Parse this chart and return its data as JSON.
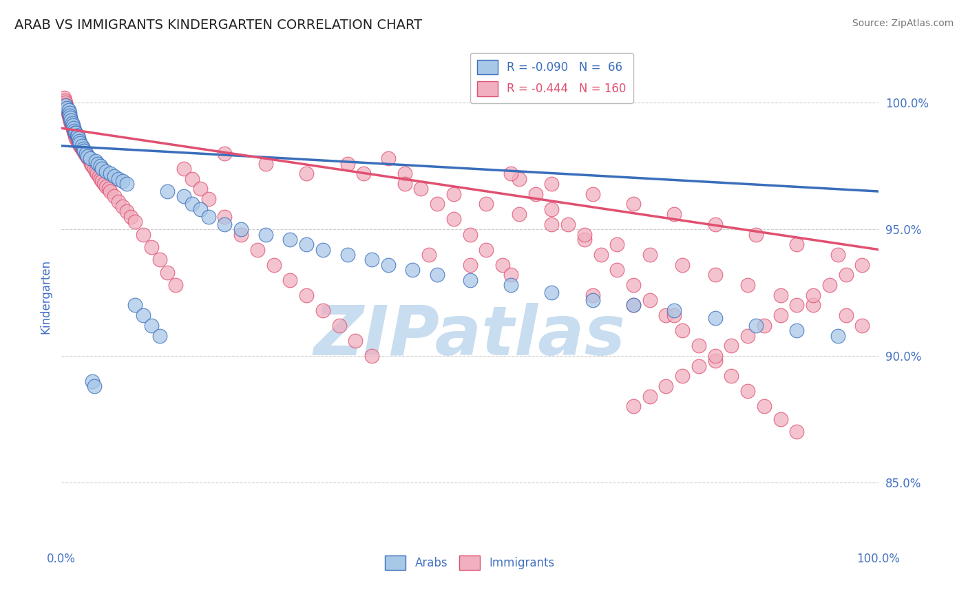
{
  "title": "ARAB VS IMMIGRANTS KINDERGARTEN CORRELATION CHART",
  "source": "Source: ZipAtlas.com",
  "ylabel": "Kindergarten",
  "xlim": [
    0.0,
    1.0
  ],
  "ylim": [
    0.825,
    1.022
  ],
  "yticks": [
    0.85,
    0.9,
    0.95,
    1.0
  ],
  "ytick_labels": [
    "85.0%",
    "90.0%",
    "95.0%",
    "100.0%"
  ],
  "xticks": [
    0.0,
    0.5,
    1.0
  ],
  "xtick_labels": [
    "0.0%",
    "",
    "100.0%"
  ],
  "blue_R": -0.09,
  "blue_N": 66,
  "pink_R": -0.444,
  "pink_N": 160,
  "blue_color": "#A8C8E8",
  "pink_color": "#F0B0C0",
  "blue_line_color": "#3A6EBB",
  "pink_line_color": "#E05070",
  "watermark_color": "#C8DDF0",
  "axis_label_color": "#4472C4",
  "grid_color": "#CCCCCC",
  "background_color": "#FFFFFF",
  "blue_line_intercept": 0.983,
  "blue_line_slope": -0.018,
  "pink_line_intercept": 0.99,
  "pink_line_slope": -0.048,
  "blue_x": [
    0.005,
    0.007,
    0.009,
    0.01,
    0.01,
    0.011,
    0.012,
    0.013,
    0.014,
    0.015,
    0.016,
    0.017,
    0.018,
    0.019,
    0.02,
    0.021,
    0.022,
    0.023,
    0.025,
    0.027,
    0.028,
    0.03,
    0.032,
    0.035,
    0.038,
    0.04,
    0.042,
    0.045,
    0.048,
    0.05,
    0.055,
    0.06,
    0.065,
    0.07,
    0.075,
    0.08,
    0.09,
    0.1,
    0.11,
    0.12,
    0.13,
    0.15,
    0.16,
    0.17,
    0.18,
    0.2,
    0.22,
    0.25,
    0.28,
    0.3,
    0.32,
    0.35,
    0.38,
    0.4,
    0.43,
    0.46,
    0.5,
    0.55,
    0.6,
    0.65,
    0.7,
    0.75,
    0.8,
    0.85,
    0.9,
    0.95
  ],
  "blue_y": [
    0.999,
    0.998,
    0.997,
    0.996,
    0.995,
    0.994,
    0.993,
    0.992,
    0.991,
    0.99,
    0.989,
    0.988,
    0.988,
    0.987,
    0.987,
    0.986,
    0.985,
    0.984,
    0.983,
    0.982,
    0.981,
    0.98,
    0.979,
    0.978,
    0.89,
    0.888,
    0.977,
    0.976,
    0.975,
    0.974,
    0.973,
    0.972,
    0.971,
    0.97,
    0.969,
    0.968,
    0.92,
    0.916,
    0.912,
    0.908,
    0.965,
    0.963,
    0.96,
    0.958,
    0.955,
    0.952,
    0.95,
    0.948,
    0.946,
    0.944,
    0.942,
    0.94,
    0.938,
    0.936,
    0.934,
    0.932,
    0.93,
    0.928,
    0.925,
    0.922,
    0.92,
    0.918,
    0.915,
    0.912,
    0.91,
    0.908
  ],
  "pink_x": [
    0.003,
    0.004,
    0.005,
    0.005,
    0.006,
    0.006,
    0.007,
    0.007,
    0.008,
    0.008,
    0.009,
    0.009,
    0.01,
    0.01,
    0.01,
    0.011,
    0.011,
    0.012,
    0.012,
    0.013,
    0.013,
    0.014,
    0.014,
    0.015,
    0.015,
    0.016,
    0.016,
    0.017,
    0.018,
    0.018,
    0.019,
    0.02,
    0.02,
    0.021,
    0.022,
    0.023,
    0.024,
    0.025,
    0.026,
    0.027,
    0.028,
    0.029,
    0.03,
    0.031,
    0.032,
    0.033,
    0.035,
    0.036,
    0.038,
    0.04,
    0.042,
    0.044,
    0.046,
    0.048,
    0.05,
    0.052,
    0.055,
    0.058,
    0.06,
    0.065,
    0.07,
    0.075,
    0.08,
    0.085,
    0.09,
    0.1,
    0.11,
    0.12,
    0.13,
    0.14,
    0.15,
    0.16,
    0.17,
    0.18,
    0.2,
    0.22,
    0.24,
    0.26,
    0.28,
    0.3,
    0.32,
    0.34,
    0.36,
    0.38,
    0.4,
    0.42,
    0.44,
    0.46,
    0.48,
    0.5,
    0.52,
    0.54,
    0.56,
    0.58,
    0.6,
    0.62,
    0.64,
    0.66,
    0.68,
    0.7,
    0.72,
    0.74,
    0.76,
    0.78,
    0.8,
    0.82,
    0.84,
    0.86,
    0.88,
    0.9,
    0.35,
    0.37,
    0.42,
    0.48,
    0.52,
    0.56,
    0.6,
    0.64,
    0.68,
    0.72,
    0.76,
    0.8,
    0.84,
    0.88,
    0.92,
    0.96,
    0.98,
    0.2,
    0.25,
    0.3,
    0.45,
    0.5,
    0.55,
    0.65,
    0.7,
    0.75,
    0.55,
    0.6,
    0.65,
    0.7,
    0.75,
    0.8,
    0.85,
    0.9,
    0.95,
    0.98,
    0.96,
    0.94,
    0.92,
    0.9,
    0.88,
    0.86,
    0.84,
    0.82,
    0.8,
    0.78,
    0.76,
    0.74,
    0.72,
    0.7
  ],
  "pink_y": [
    1.002,
    1.001,
    1.0,
    0.999,
    0.999,
    0.998,
    0.998,
    0.997,
    0.997,
    0.996,
    0.996,
    0.995,
    0.995,
    0.994,
    0.994,
    0.993,
    0.993,
    0.992,
    0.992,
    0.991,
    0.991,
    0.99,
    0.99,
    0.989,
    0.989,
    0.988,
    0.988,
    0.987,
    0.987,
    0.986,
    0.986,
    0.985,
    0.985,
    0.984,
    0.984,
    0.983,
    0.983,
    0.982,
    0.982,
    0.981,
    0.981,
    0.98,
    0.98,
    0.979,
    0.979,
    0.978,
    0.977,
    0.976,
    0.975,
    0.974,
    0.973,
    0.972,
    0.971,
    0.97,
    0.969,
    0.968,
    0.967,
    0.966,
    0.965,
    0.963,
    0.961,
    0.959,
    0.957,
    0.955,
    0.953,
    0.948,
    0.943,
    0.938,
    0.933,
    0.928,
    0.974,
    0.97,
    0.966,
    0.962,
    0.955,
    0.948,
    0.942,
    0.936,
    0.93,
    0.924,
    0.918,
    0.912,
    0.906,
    0.9,
    0.978,
    0.972,
    0.966,
    0.96,
    0.954,
    0.948,
    0.942,
    0.936,
    0.97,
    0.964,
    0.958,
    0.952,
    0.946,
    0.94,
    0.934,
    0.928,
    0.922,
    0.916,
    0.91,
    0.904,
    0.898,
    0.892,
    0.886,
    0.88,
    0.875,
    0.87,
    0.976,
    0.972,
    0.968,
    0.964,
    0.96,
    0.956,
    0.952,
    0.948,
    0.944,
    0.94,
    0.936,
    0.932,
    0.928,
    0.924,
    0.92,
    0.916,
    0.912,
    0.98,
    0.976,
    0.972,
    0.94,
    0.936,
    0.932,
    0.924,
    0.92,
    0.916,
    0.972,
    0.968,
    0.964,
    0.96,
    0.956,
    0.952,
    0.948,
    0.944,
    0.94,
    0.936,
    0.932,
    0.928,
    0.924,
    0.92,
    0.916,
    0.912,
    0.908,
    0.904,
    0.9,
    0.896,
    0.892,
    0.888,
    0.884,
    0.88
  ]
}
